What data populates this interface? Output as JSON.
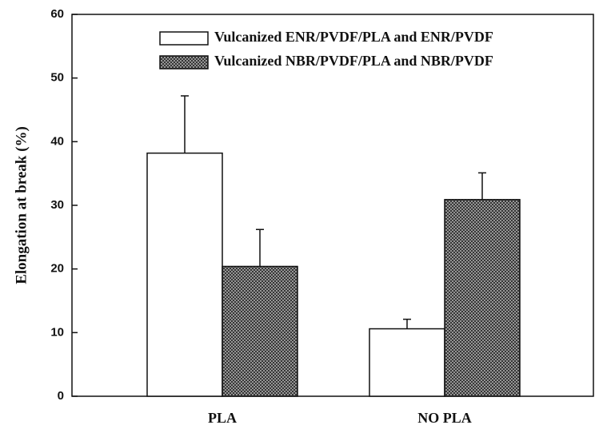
{
  "chart_data": {
    "type": "bar",
    "y_label": "Elongation at break (%)",
    "categories": [
      "PLA",
      "NO PLA"
    ],
    "series": [
      {
        "name": "Vulcanized ENR/PVDF/PLA and ENR/PVDF",
        "color": "#ffffff",
        "values": [
          38.2,
          10.6
        ],
        "errors": [
          9.0,
          1.5
        ]
      },
      {
        "name": "Vulcanized NBR/PVDF/PLA and NBR/PVDF",
        "color": "#555555",
        "pattern": "crosshatch",
        "values": [
          20.4,
          30.9
        ],
        "errors": [
          5.8,
          4.2
        ]
      }
    ],
    "ylim": [
      0,
      60
    ],
    "yticks": [
      0,
      10,
      20,
      30,
      40,
      50,
      60
    ],
    "legend": "upper right"
  }
}
